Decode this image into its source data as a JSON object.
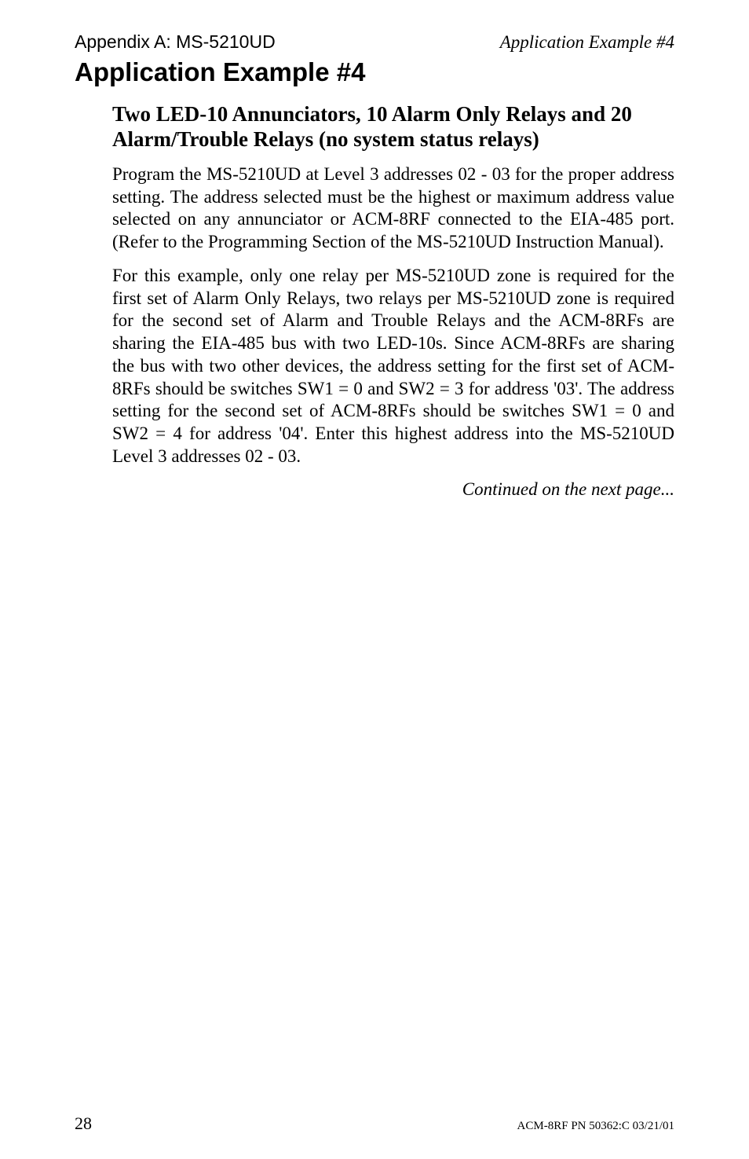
{
  "header": {
    "left": "Appendix A: MS-5210UD",
    "right": "Application Example #4"
  },
  "mainHeading": "Application Example #4",
  "subHeading": "Two LED-10 Annunciators, 10 Alarm Only Relays and 20 Alarm/Trouble Relays (no system status relays)",
  "para1": "Program the MS-5210UD at Level 3 addresses 02 - 03 for the proper address setting.  The address selected must be the highest or maximum address value selected on any annunciator or ACM-8RF connected to the EIA-485 port. (Refer to the Programming Section of the MS-5210UD Instruction Manual).",
  "para2": "For this example, only one relay per MS-5210UD zone is required for the first set of Alarm Only Relays, two relays per MS-5210UD zone is required for the second set of Alarm and Trouble Relays and the ACM-8RFs are sharing the EIA-485 bus with two LED-10s.  Since ACM-8RFs are sharing the bus with two other devices, the address setting for the first set of ACM-8RFs should be switches SW1 = 0 and SW2 = 3 for address '03'.  The address setting for the second set of ACM-8RFs should be switches SW1 = 0 and SW2 = 4 for address '04'.  Enter this highest address into the MS-5210UD Level 3 addresses 02 - 03.",
  "continued": "Continued on the next page...",
  "footer": {
    "pageNum": "28",
    "docId": "ACM-8RF  PN 50362:C  03/21/01"
  }
}
